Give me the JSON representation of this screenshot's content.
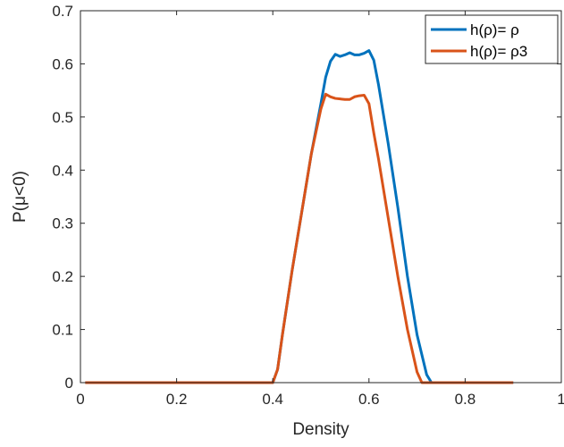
{
  "chart_data": {
    "type": "line",
    "title": "",
    "xlabel": "Density",
    "ylabel": "P(μ<0)",
    "xlim": [
      0,
      1
    ],
    "ylim": [
      0,
      0.7
    ],
    "xticks": [
      0,
      0.2,
      0.4,
      0.6,
      0.8,
      1
    ],
    "yticks": [
      0,
      0.1,
      0.2,
      0.3,
      0.4,
      0.5,
      0.6,
      0.7
    ],
    "xtick_labels": [
      "0",
      "0.2",
      "0.4",
      "0.6",
      "0.8",
      "1"
    ],
    "ytick_labels": [
      "0",
      "0.1",
      "0.2",
      "0.3",
      "0.4",
      "0.5",
      "0.6",
      "0.7"
    ],
    "grid": false,
    "legend_position": "top-right",
    "series": [
      {
        "name": "h(ρ)= ρ",
        "color": "#0072bd",
        "x": [
          0.01,
          0.1,
          0.2,
          0.3,
          0.39,
          0.4,
          0.41,
          0.42,
          0.44,
          0.46,
          0.48,
          0.5,
          0.51,
          0.52,
          0.53,
          0.54,
          0.55,
          0.56,
          0.57,
          0.58,
          0.59,
          0.6,
          0.61,
          0.62,
          0.64,
          0.66,
          0.68,
          0.7,
          0.72,
          0.73,
          0.74,
          0.8,
          0.9
        ],
        "y": [
          0,
          0,
          0,
          0,
          0,
          0,
          0.025,
          0.09,
          0.21,
          0.32,
          0.43,
          0.525,
          0.575,
          0.605,
          0.618,
          0.614,
          0.617,
          0.621,
          0.617,
          0.617,
          0.62,
          0.625,
          0.607,
          0.56,
          0.45,
          0.33,
          0.2,
          0.09,
          0.015,
          0,
          0,
          0,
          0
        ]
      },
      {
        "name": "h(ρ)= ρ3",
        "color": "#d95319",
        "x": [
          0.01,
          0.1,
          0.2,
          0.3,
          0.39,
          0.4,
          0.41,
          0.42,
          0.44,
          0.46,
          0.48,
          0.5,
          0.51,
          0.52,
          0.53,
          0.54,
          0.55,
          0.56,
          0.57,
          0.58,
          0.59,
          0.6,
          0.61,
          0.62,
          0.64,
          0.66,
          0.68,
          0.7,
          0.71,
          0.72,
          0.8,
          0.9
        ],
        "y": [
          0,
          0,
          0,
          0,
          0,
          0,
          0.025,
          0.09,
          0.21,
          0.32,
          0.43,
          0.515,
          0.543,
          0.538,
          0.535,
          0.534,
          0.533,
          0.533,
          0.538,
          0.54,
          0.541,
          0.525,
          0.47,
          0.42,
          0.31,
          0.2,
          0.1,
          0.02,
          0,
          0,
          0,
          0
        ]
      }
    ]
  }
}
